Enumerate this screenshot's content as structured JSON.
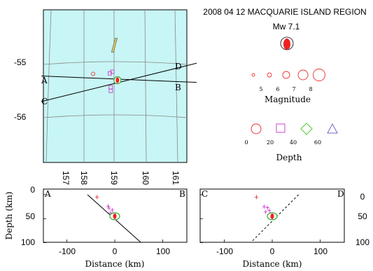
{
  "title": "2008 04 12 MACQUARIE ISLAND REGION",
  "magnitude_label": "Mw 7.1",
  "colors": {
    "sea": "#c8f5f5",
    "grid": "#888888",
    "event": "#ee2222",
    "mainshock_ring": "#33aa33",
    "depth_0": "#ee3333",
    "depth_20": "#cc44cc",
    "depth_40": "#55cc33",
    "depth_60": "#7766cc",
    "island": "#d8c860"
  },
  "chart_data": [
    {
      "type": "map",
      "lon_ticks": [
        "157",
        "158",
        "159",
        "160",
        "161"
      ],
      "lat_ticks": [
        "-55",
        "-56"
      ],
      "profiles": [
        {
          "start": "A",
          "end": "B",
          "start_lonlat": [
            156.6,
            -55.27
          ],
          "end_lonlat": [
            161.7,
            -55.39
          ]
        },
        {
          "start": "C",
          "end": "D",
          "start_lonlat": [
            156.6,
            -55.75
          ],
          "end_lonlat": [
            161.7,
            -55.03
          ]
        }
      ],
      "mainshock": {
        "lon": 159.1,
        "lat": -55.35,
        "mw": 7.1
      },
      "events": [
        {
          "lon": 158.3,
          "lat": -55.23,
          "depth": 10
        },
        {
          "lon": 158.85,
          "lat": -55.22,
          "depth": 20
        },
        {
          "lon": 158.93,
          "lat": -55.19,
          "depth": 15
        },
        {
          "lon": 158.88,
          "lat": -55.48,
          "depth": 20
        },
        {
          "lon": 158.88,
          "lat": -55.55,
          "depth": 20
        },
        {
          "lon": 159.05,
          "lat": -55.35,
          "depth": 35
        }
      ],
      "island": [
        [
          159.05,
          -54.56
        ],
        [
          158.95,
          -54.82
        ]
      ]
    },
    {
      "type": "legend",
      "magnitude_title": "Magnitude",
      "magnitudes": [
        "5",
        "6",
        "7",
        "8"
      ],
      "depth_title": "Depth",
      "depths": [
        {
          "value": "0",
          "shape": "circle"
        },
        {
          "value": "20",
          "shape": "square"
        },
        {
          "value": "40",
          "shape": "diamond"
        },
        {
          "value": "60",
          "shape": "triangle"
        }
      ]
    },
    {
      "type": "scatter",
      "profile": "A-B",
      "start_label": "A",
      "end_label": "B",
      "xlabel": "Distance (km)",
      "ylabel": "Depth (km)",
      "xlim": [
        -150,
        150
      ],
      "ylim": [
        100,
        0
      ],
      "xticks": [
        "-100",
        "0",
        "100"
      ],
      "yticks": [
        "0",
        "50",
        "100"
      ],
      "plane": {
        "style": "solid",
        "points": [
          [
            -57,
            0
          ],
          [
            55,
            100
          ]
        ]
      },
      "mainshock": {
        "x": 0,
        "depth": 45
      },
      "events": [
        {
          "x": -37,
          "depth": 5
        },
        {
          "x": -14,
          "depth": 24
        },
        {
          "x": -12,
          "depth": 28
        },
        {
          "x": -5,
          "depth": 32
        },
        {
          "x": -9,
          "depth": 38
        },
        {
          "x": -3,
          "depth": 40
        }
      ]
    },
    {
      "type": "scatter",
      "profile": "C-D",
      "start_label": "C",
      "end_label": "D",
      "xlabel": "Distance (km)",
      "ylabel": "",
      "xlim": [
        -150,
        150
      ],
      "ylim": [
        100,
        0
      ],
      "xticks": [
        "-100",
        "0",
        "100"
      ],
      "yticks": [
        "0",
        "50",
        "100"
      ],
      "plane": {
        "style": "dashed",
        "points": [
          [
            55,
            0
          ],
          [
            -45,
            100
          ]
        ]
      },
      "mainshock": {
        "x": 0,
        "depth": 45
      },
      "events": [
        {
          "x": -33,
          "depth": 5
        },
        {
          "x": -17,
          "depth": 25
        },
        {
          "x": -10,
          "depth": 27
        },
        {
          "x": -6,
          "depth": 33
        },
        {
          "x": -14,
          "depth": 36
        },
        {
          "x": -4,
          "depth": 40
        }
      ]
    }
  ]
}
